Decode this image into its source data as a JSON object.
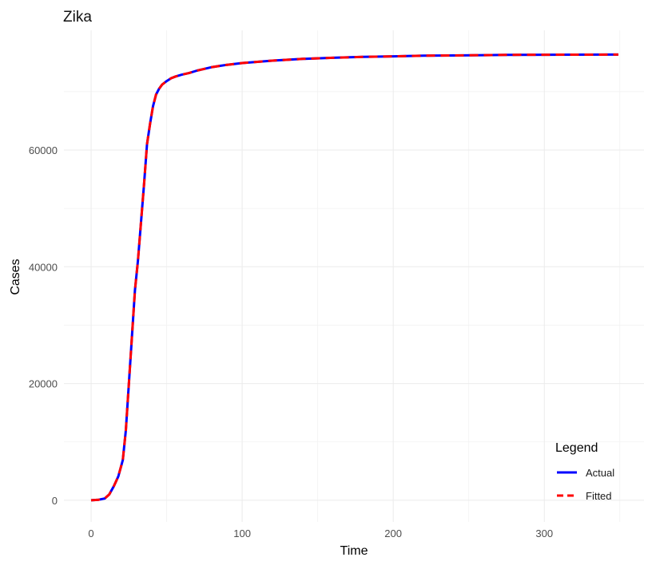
{
  "chart_data": {
    "type": "line",
    "title": "Zika",
    "xlabel": "Time",
    "ylabel": "Cases",
    "xlim": [
      -18,
      366
    ],
    "ylim": [
      -3700,
      80500
    ],
    "x_ticks": [
      0,
      100,
      200,
      300
    ],
    "x_tick_labels": [
      "0",
      "100",
      "200",
      "300"
    ],
    "y_ticks": [
      0,
      20000,
      40000,
      60000
    ],
    "y_tick_labels": [
      "0",
      "20000",
      "40000",
      "60000"
    ],
    "grid": true,
    "legend": {
      "title": "Legend",
      "position": "bottom-right"
    },
    "series": [
      {
        "name": "Actual",
        "color": "#0000ff",
        "dash": "solid",
        "x": [
          0,
          5,
          9,
          12,
          15,
          18,
          21,
          23,
          25,
          27,
          29,
          31,
          33,
          35,
          37,
          39,
          41,
          43,
          45,
          47,
          50,
          53,
          56,
          60,
          65,
          70,
          75,
          80,
          85,
          90,
          100,
          110,
          120,
          140,
          160,
          180,
          200,
          220,
          240,
          260,
          280,
          300,
          320,
          349
        ],
        "values": [
          0,
          100,
          300,
          1000,
          2400,
          4100,
          6900,
          12000,
          20000,
          28000,
          36000,
          41000,
          47500,
          54000,
          61000,
          64500,
          67500,
          69500,
          70500,
          71200,
          71800,
          72300,
          72600,
          72900,
          73200,
          73600,
          73900,
          74200,
          74400,
          74600,
          74900,
          75100,
          75300,
          75600,
          75800,
          75950,
          76050,
          76150,
          76200,
          76250,
          76300,
          76320,
          76330,
          76340
        ]
      },
      {
        "name": "Fitted",
        "color": "#ff0000",
        "dash": "dashed",
        "x": [
          0,
          5,
          9,
          12,
          15,
          18,
          21,
          23,
          25,
          27,
          29,
          31,
          33,
          35,
          37,
          39,
          41,
          43,
          45,
          47,
          50,
          53,
          56,
          60,
          65,
          70,
          75,
          80,
          85,
          90,
          100,
          110,
          120,
          140,
          160,
          180,
          200,
          220,
          240,
          260,
          280,
          300,
          320,
          349
        ],
        "values": [
          0,
          100,
          300,
          1000,
          2400,
          4100,
          6900,
          12000,
          20000,
          28000,
          36000,
          41000,
          47500,
          54000,
          61000,
          64500,
          67500,
          69500,
          70500,
          71200,
          71800,
          72300,
          72600,
          72900,
          73200,
          73600,
          73900,
          74200,
          74400,
          74600,
          74900,
          75100,
          75300,
          75600,
          75800,
          75950,
          76050,
          76150,
          76200,
          76250,
          76300,
          76320,
          76330,
          76340
        ]
      }
    ]
  }
}
